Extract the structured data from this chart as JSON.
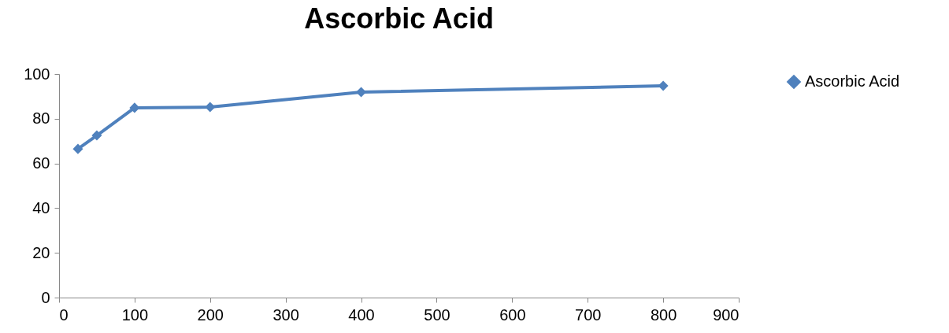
{
  "chart_data": {
    "type": "line",
    "title": "Ascorbic Acid",
    "x": [
      25,
      50,
      100,
      200,
      400,
      800
    ],
    "series": [
      {
        "name": "Ascorbic Acid",
        "color": "#4f81bd",
        "values": [
          66.5,
          72.5,
          84.9,
          85.2,
          91.9,
          94.7
        ]
      }
    ],
    "xlim": [
      0,
      900
    ],
    "xticks": [
      0,
      100,
      200,
      300,
      400,
      500,
      600,
      700,
      800,
      900
    ],
    "ylim": [
      0,
      100
    ],
    "yticks": [
      0,
      20,
      40,
      60,
      80,
      100
    ],
    "grid": false,
    "legend": "right",
    "marker": "diamond",
    "line_style": "solid"
  }
}
